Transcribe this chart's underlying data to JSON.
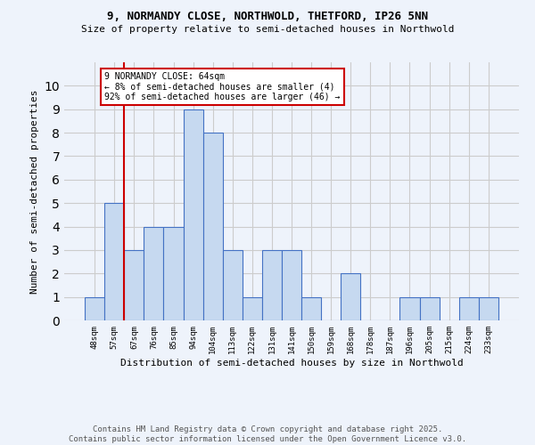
{
  "title_line1": "9, NORMANDY CLOSE, NORTHWOLD, THETFORD, IP26 5NN",
  "title_line2": "Size of property relative to semi-detached houses in Northwold",
  "xlabel": "Distribution of semi-detached houses by size in Northwold",
  "ylabel": "Number of semi-detached properties",
  "categories": [
    "48sqm",
    "57sqm",
    "67sqm",
    "76sqm",
    "85sqm",
    "94sqm",
    "104sqm",
    "113sqm",
    "122sqm",
    "131sqm",
    "141sqm",
    "150sqm",
    "159sqm",
    "168sqm",
    "178sqm",
    "187sqm",
    "196sqm",
    "205sqm",
    "215sqm",
    "224sqm",
    "233sqm"
  ],
  "values": [
    1,
    5,
    3,
    4,
    4,
    9,
    8,
    3,
    1,
    3,
    3,
    1,
    0,
    2,
    0,
    0,
    1,
    1,
    0,
    1,
    1
  ],
  "bar_color": "#c6d9f0",
  "bar_edge_color": "#4472c4",
  "red_line_x": 1.5,
  "annotation_text": "9 NORMANDY CLOSE: 64sqm\n← 8% of semi-detached houses are smaller (4)\n92% of semi-detached houses are larger (46) →",
  "annotation_box_color": "#ffffff",
  "annotation_box_edge": "#cc0000",
  "red_line_color": "#cc0000",
  "ylim": [
    0,
    11
  ],
  "yticks": [
    0,
    1,
    2,
    3,
    4,
    5,
    6,
    7,
    8,
    9,
    10,
    11
  ],
  "grid_color": "#cccccc",
  "background_color": "#eef3fb",
  "footer_text": "Contains HM Land Registry data © Crown copyright and database right 2025.\nContains public sector information licensed under the Open Government Licence v3.0."
}
